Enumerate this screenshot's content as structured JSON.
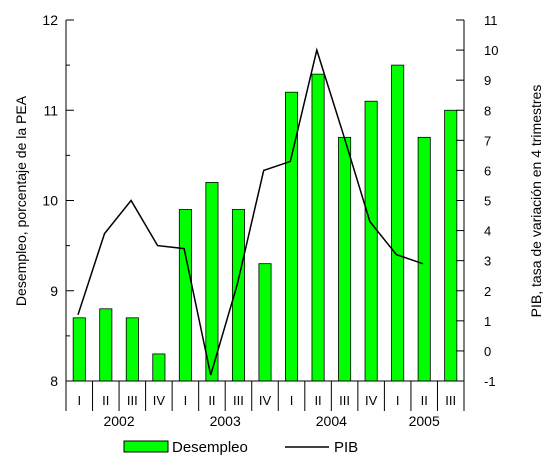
{
  "chart_data": {
    "type": "bar",
    "ylabel": "Desempleo, porcentaje de la PEA",
    "y2label": "PIB, tasa de variación en 4 trimestres",
    "ylim": [
      8,
      12
    ],
    "y2lim": [
      -1,
      11
    ],
    "yticks": [
      8,
      9,
      10,
      11,
      12
    ],
    "y2ticks": [
      -1,
      0,
      1,
      2,
      3,
      4,
      5,
      6,
      7,
      8,
      9,
      10,
      11
    ],
    "categories": [
      "I",
      "II",
      "III",
      "IV",
      "I",
      "II",
      "III",
      "IV",
      "I",
      "II",
      "III",
      "IV",
      "I",
      "II",
      "III"
    ],
    "years": [
      {
        "label": "2002",
        "start": 0,
        "count": 4
      },
      {
        "label": "2003",
        "start": 4,
        "count": 4
      },
      {
        "label": "2004",
        "start": 8,
        "count": 4
      },
      {
        "label": "2005",
        "start": 12,
        "count": 3
      }
    ],
    "series": [
      {
        "name": "Desempleo",
        "type": "bar",
        "axis": "left",
        "color": "#00ff00",
        "values": [
          8.7,
          8.8,
          8.7,
          8.3,
          9.9,
          10.2,
          9.9,
          9.3,
          11.2,
          11.4,
          10.7,
          11.1,
          11.5,
          10.7,
          11.0
        ]
      },
      {
        "name": "PIB",
        "type": "line",
        "axis": "right",
        "color": "#000000",
        "values": [
          1.2,
          3.9,
          5.0,
          3.5,
          3.4,
          -0.8,
          2.2,
          6.0,
          6.3,
          10.0,
          7.2,
          4.3,
          3.2,
          2.9,
          null
        ]
      }
    ],
    "legend_position": "bottom",
    "grid": false
  }
}
